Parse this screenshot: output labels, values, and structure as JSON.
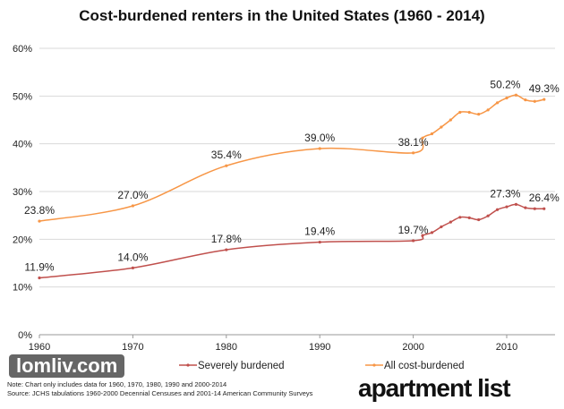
{
  "chart_data": {
    "type": "line",
    "title": "Cost-burdened renters in the United States (1960 - 2014)",
    "x": [
      1960,
      1970,
      1980,
      1990,
      2000,
      2001,
      2002,
      2003,
      2004,
      2005,
      2006,
      2007,
      2008,
      2009,
      2010,
      2011,
      2012,
      2013,
      2014
    ],
    "series": [
      {
        "name": "Severely burdened",
        "color": "#c0504d",
        "values": [
          11.9,
          14.0,
          17.8,
          19.4,
          19.7,
          20.8,
          21.4,
          22.6,
          23.6,
          24.6,
          24.5,
          24.1,
          24.9,
          26.2,
          26.8,
          27.3,
          26.6,
          26.4,
          26.4
        ],
        "labels": {
          "1960": "11.9%",
          "1970": "14.0%",
          "1980": "17.8%",
          "1990": "19.4%",
          "2000": "19.7%",
          "2011": "27.3%",
          "2014": "26.4%"
        }
      },
      {
        "name": "All cost-burdened",
        "color": "#f79646",
        "values": [
          23.8,
          27.0,
          35.4,
          39.0,
          38.1,
          41.2,
          42.1,
          43.5,
          45.0,
          46.6,
          46.6,
          46.2,
          47.1,
          48.6,
          49.6,
          50.2,
          49.2,
          48.9,
          49.3
        ],
        "labels": {
          "1960": "23.8%",
          "1970": "27.0%",
          "1980": "35.4%",
          "1990": "39.0%",
          "2000": "38.1%",
          "2011": "50.2%",
          "2014": "49.3%"
        }
      }
    ],
    "xticks": [
      "1960",
      "1970",
      "1980",
      "1990",
      "2000",
      "2010"
    ],
    "yticks": [
      "0%",
      "10%",
      "20%",
      "30%",
      "40%",
      "50%",
      "60%"
    ],
    "ylim": [
      0,
      60
    ],
    "xlim": [
      1960,
      2014
    ],
    "grid": true,
    "legend": "bottom"
  },
  "notes": {
    "note": "Note: Chart only includes data for 1960, 1970, 1980, 1990 and 2000-2014",
    "source": "Source: JCHS tabulations 1960-2000 Decennial Censuses and 2001-14 American Community Surveys"
  },
  "logo": "apartmentlist",
  "watermark": "lomliv.com"
}
